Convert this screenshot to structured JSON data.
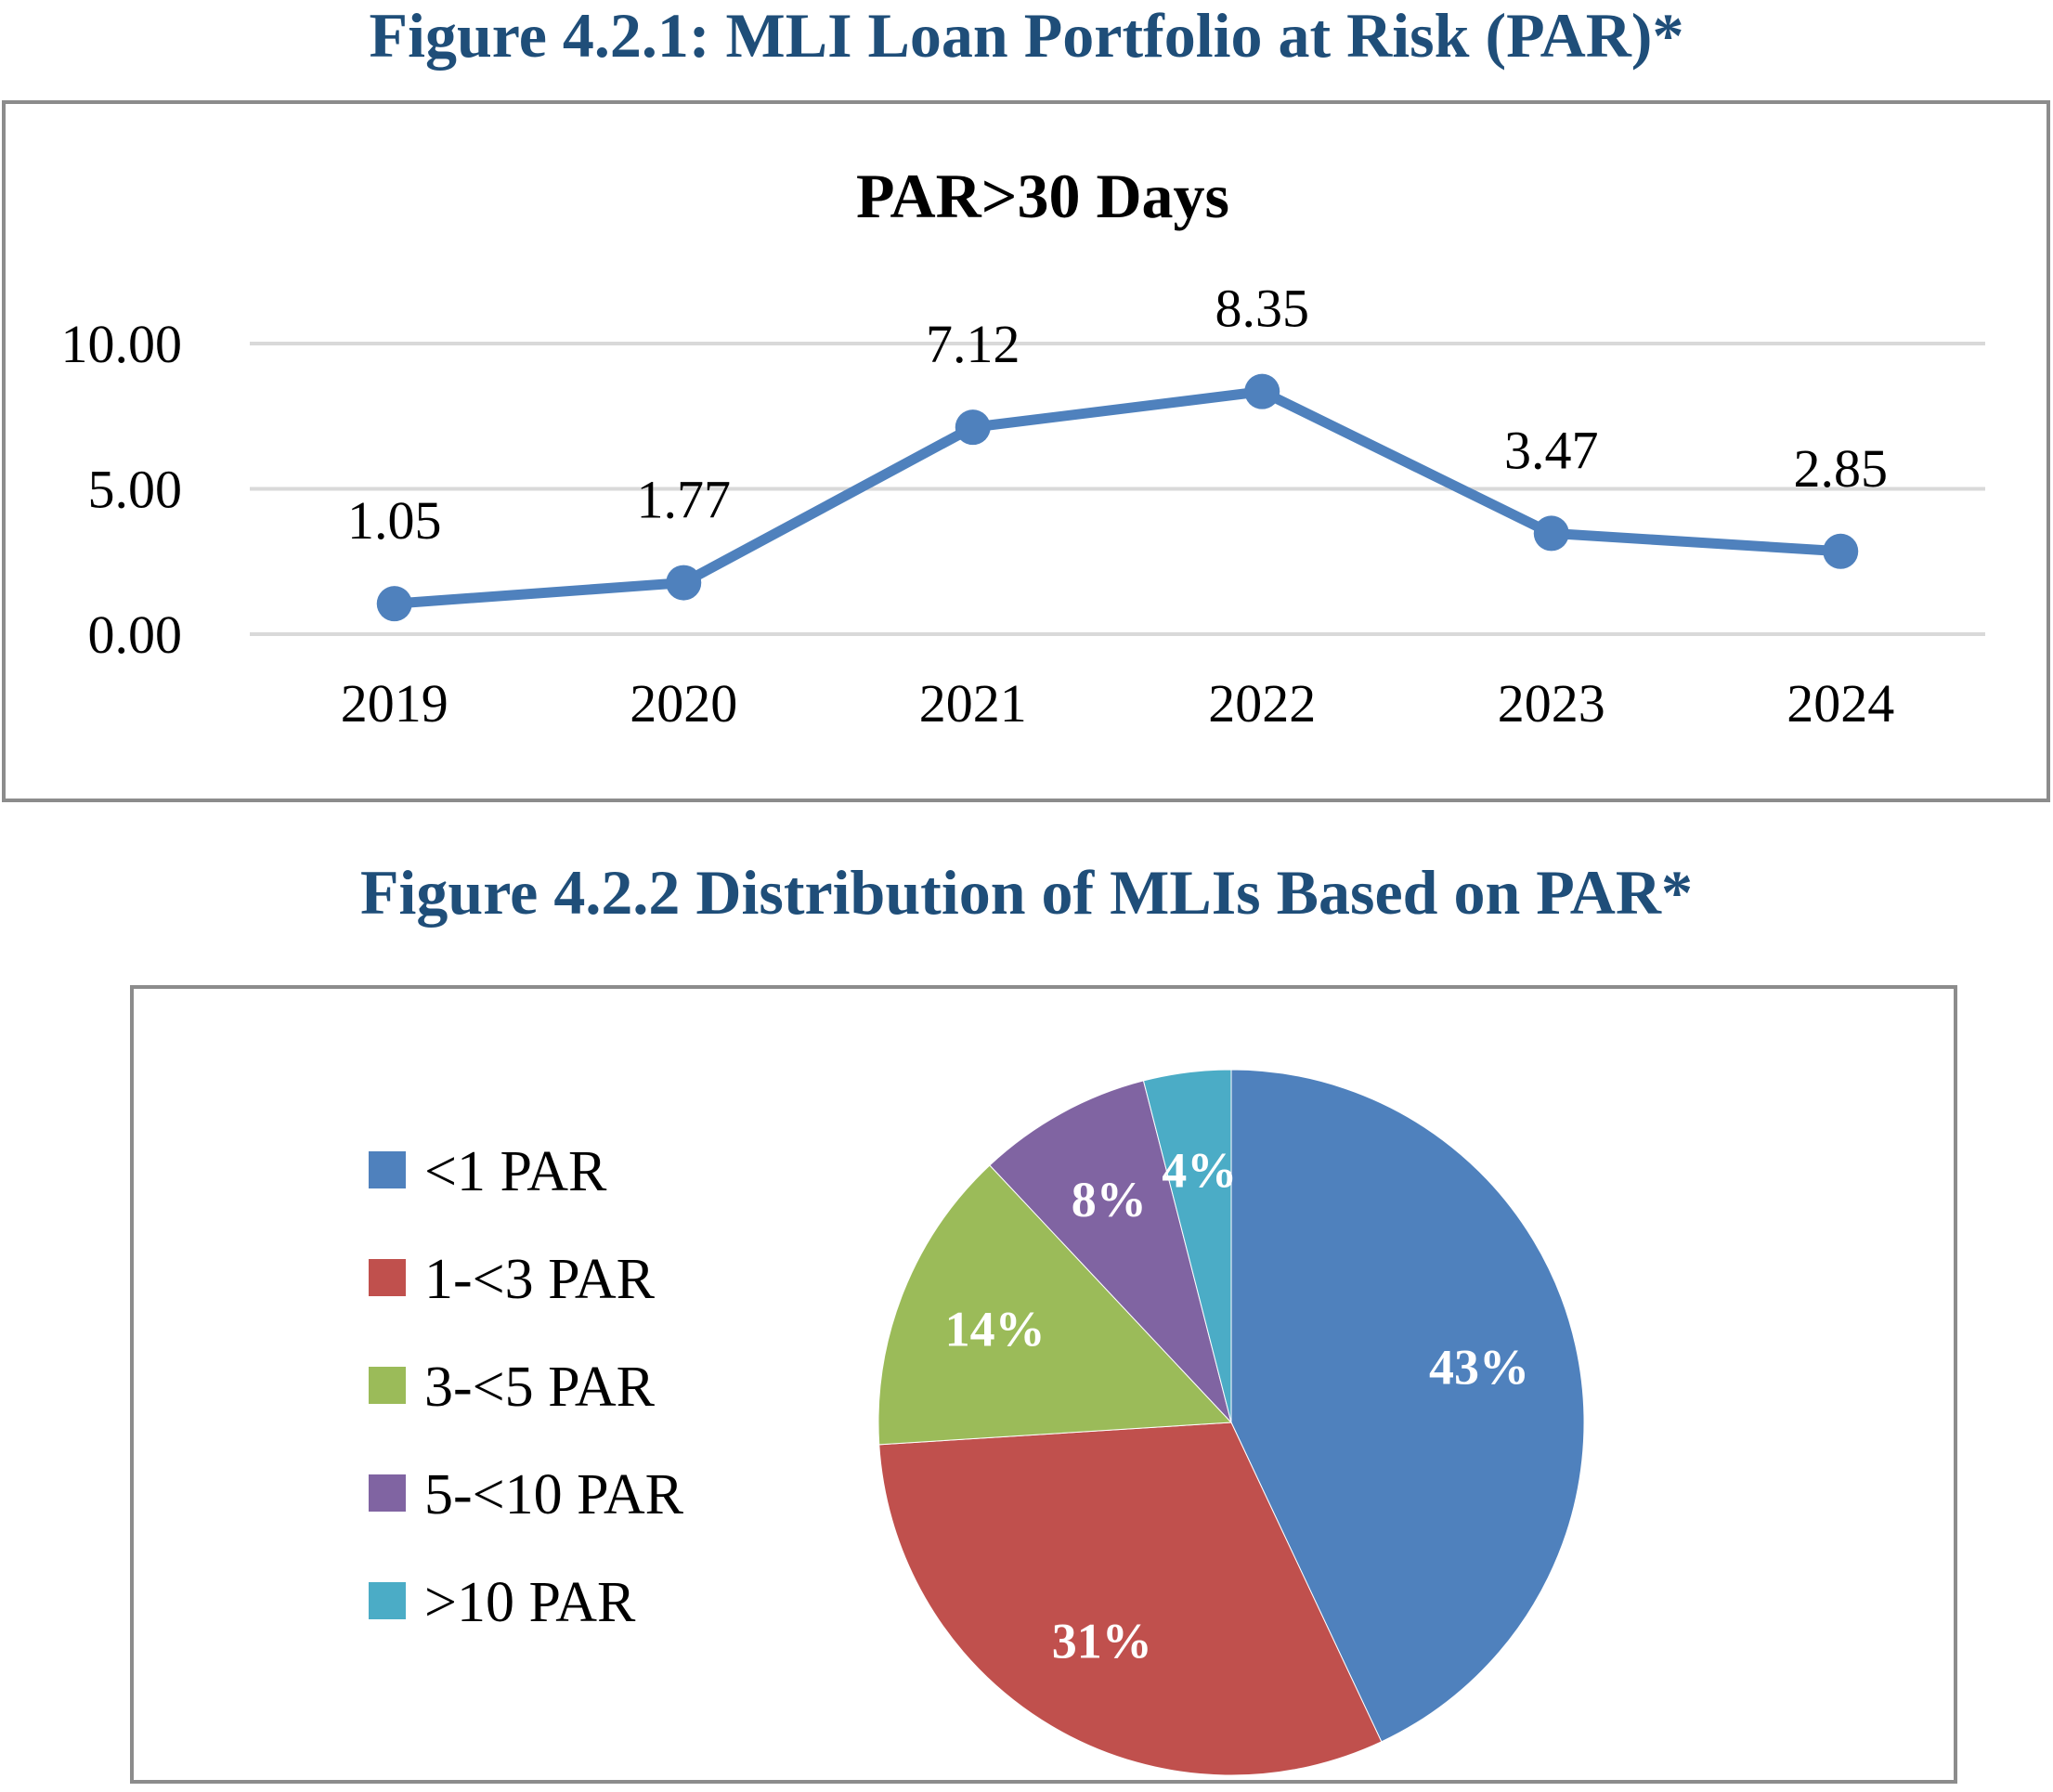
{
  "figure1": {
    "title": "Figure 4.2.1: MLI Loan Portfolio at Risk (PAR)*"
  },
  "figure2": {
    "title": "Figure 4.2.2 Distribution of MLIs Based on PAR*"
  },
  "chart_data": [
    {
      "type": "line",
      "title": "PAR>30 Days",
      "xlabel": "",
      "ylabel": "",
      "categories": [
        "2019",
        "2020",
        "2021",
        "2022",
        "2023",
        "2024"
      ],
      "series": [
        {
          "values": [
            1.05,
            1.77,
            7.12,
            8.35,
            3.47,
            2.85
          ],
          "labels": [
            "1.05",
            "1.77",
            "7.12",
            "8.35",
            "3.47",
            "2.85"
          ],
          "color": "#4f81bd"
        }
      ],
      "ylim": [
        0,
        10
      ],
      "yticks": [
        {
          "value": 0,
          "label": "0.00"
        },
        {
          "value": 5,
          "label": "5.00"
        },
        {
          "value": 10,
          "label": "10.00"
        }
      ],
      "grid": true,
      "legend": "none",
      "gridline_color": "#d9d9d9"
    },
    {
      "type": "pie",
      "title": "",
      "legend": "left",
      "slices": [
        {
          "name": "<1 PAR",
          "value": 43,
          "label": "43%",
          "color": "#4f81bd"
        },
        {
          "name": "1-<3 PAR",
          "value": 31,
          "label": "31%",
          "color": "#c0504d"
        },
        {
          "name": "3-<5 PAR",
          "value": 14,
          "label": "14%",
          "color": "#9bbb59"
        },
        {
          "name": "5-<10 PAR",
          "value": 8,
          "label": "8%",
          "color": "#8064a2"
        },
        {
          "name": ">10 PAR",
          "value": 4,
          "label": "4%",
          "color": "#4bacc6"
        }
      ]
    }
  ]
}
